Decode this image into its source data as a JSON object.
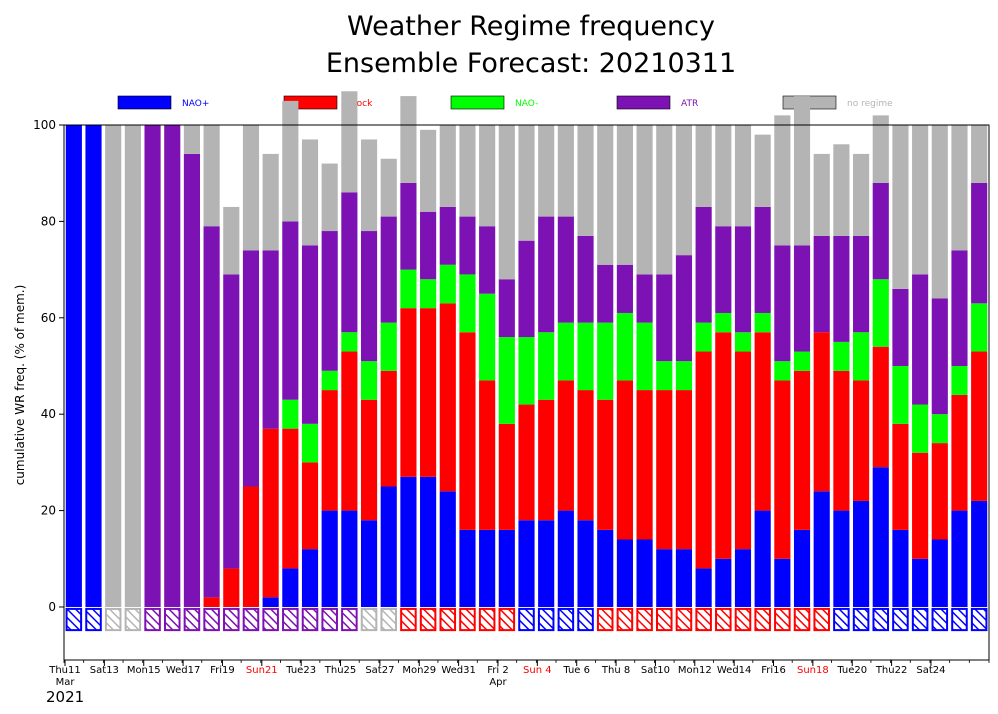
{
  "chart_data": {
    "type": "bar",
    "stacked": true,
    "title": [
      "Weather Regime frequency",
      "Ensemble Forecast: 20210311"
    ],
    "ylabel": "cumulative WR freq. (% of mem.)",
    "ylim": [
      -11,
      100
    ],
    "yticks": [
      0,
      20,
      40,
      60,
      80,
      100
    ],
    "grid": false,
    "legend_position": "top",
    "series": [
      {
        "name": "NAO+",
        "color": "#0000ff",
        "values": [
          100,
          100,
          0,
          0,
          0,
          0,
          0,
          0,
          0,
          0,
          2,
          8,
          12,
          20,
          20,
          18,
          25,
          27,
          27,
          24,
          16,
          16,
          16,
          18,
          18,
          20,
          18,
          16,
          14,
          14,
          12,
          12,
          8,
          10,
          12,
          20,
          10,
          16,
          24,
          20,
          22,
          29,
          16,
          10,
          14,
          20,
          22
        ]
      },
      {
        "name": "Block",
        "color": "#ff0000",
        "values": [
          0,
          0,
          0,
          0,
          0,
          0,
          0,
          2,
          8,
          25,
          35,
          29,
          18,
          25,
          33,
          25,
          24,
          35,
          35,
          39,
          41,
          31,
          22,
          24,
          25,
          27,
          27,
          27,
          33,
          31,
          33,
          33,
          45,
          47,
          41,
          37,
          37,
          33,
          33,
          29,
          25,
          25,
          22,
          22,
          20,
          24,
          31
        ]
      },
      {
        "name": "NAO-",
        "color": "#00ff00",
        "values": [
          0,
          0,
          0,
          0,
          0,
          0,
          0,
          0,
          0,
          0,
          0,
          6,
          8,
          4,
          4,
          8,
          10,
          8,
          6,
          8,
          12,
          18,
          18,
          14,
          14,
          12,
          14,
          16,
          14,
          14,
          6,
          6,
          6,
          4,
          4,
          4,
          4,
          4,
          0,
          6,
          10,
          14,
          12,
          10,
          6,
          6,
          10
        ]
      },
      {
        "name": "ATR",
        "color": "#7d12b4",
        "values": [
          0,
          0,
          0,
          0,
          100,
          100,
          94,
          77,
          61,
          49,
          37,
          37,
          37,
          29,
          29,
          27,
          22,
          18,
          14,
          12,
          12,
          14,
          12,
          20,
          24,
          22,
          18,
          12,
          10,
          10,
          18,
          22,
          24,
          18,
          22,
          22,
          24,
          22,
          20,
          22,
          20,
          20,
          16,
          27,
          24,
          24,
          25
        ]
      },
      {
        "name": "no regime",
        "color": "#b4b4b4",
        "values": [
          0,
          0,
          100,
          100,
          0,
          0,
          6,
          21,
          14,
          26,
          20,
          25,
          22,
          14,
          21,
          19,
          12,
          18,
          17,
          17,
          19,
          21,
          32,
          24,
          19,
          19,
          23,
          29,
          29,
          31,
          31,
          27,
          17,
          21,
          21,
          15,
          27,
          31,
          17,
          19,
          17,
          14,
          34,
          31,
          36,
          26,
          12
        ]
      }
    ],
    "markers": [
      {
        "series": "NAO+",
        "positions": [
          0,
          1,
          23,
          24,
          25,
          26,
          39,
          40,
          41,
          42,
          43,
          44,
          45,
          46
        ]
      },
      {
        "series": "Block",
        "positions": [
          17,
          18,
          19,
          20,
          21,
          22,
          27,
          28,
          29,
          30,
          31,
          32,
          33,
          34,
          35,
          36,
          37,
          38
        ]
      },
      {
        "series": "ATR",
        "positions": [
          4,
          5,
          6,
          7,
          8,
          9,
          10,
          11,
          12,
          13,
          14
        ]
      },
      {
        "series": "no regime",
        "positions": [
          2,
          3,
          15,
          16
        ]
      }
    ],
    "x_tick_labels": [
      {
        "bar": 0,
        "label": "Thu11",
        "color": "#000000"
      },
      {
        "bar": 2,
        "label": "Sat13",
        "color": "#000000"
      },
      {
        "bar": 4,
        "label": "Mon15",
        "color": "#000000"
      },
      {
        "bar": 6,
        "label": "Wed17",
        "color": "#000000"
      },
      {
        "bar": 8,
        "label": "Fri19",
        "color": "#000000"
      },
      {
        "bar": 10,
        "label": "Sun21",
        "color": "#ff0000"
      },
      {
        "bar": 12,
        "label": "Tue23",
        "color": "#000000"
      },
      {
        "bar": 14,
        "label": "Thu25",
        "color": "#000000"
      },
      {
        "bar": 16,
        "label": "Sat27",
        "color": "#000000"
      },
      {
        "bar": 18,
        "label": "Mon29",
        "color": "#000000"
      },
      {
        "bar": 20,
        "label": "Wed31",
        "color": "#000000"
      },
      {
        "bar": 22,
        "label": "Fri 2",
        "color": "#000000"
      },
      {
        "bar": 24,
        "label": "Sun 4",
        "color": "#ff0000"
      },
      {
        "bar": 26,
        "label": "Tue 6",
        "color": "#000000"
      },
      {
        "bar": 28,
        "label": "Thu 8",
        "color": "#000000"
      },
      {
        "bar": 30,
        "label": "Sat10",
        "color": "#000000"
      },
      {
        "bar": 32,
        "label": "Mon12",
        "color": "#000000"
      },
      {
        "bar": 34,
        "label": "Wed14",
        "color": "#000000"
      },
      {
        "bar": 36,
        "label": "Fri16",
        "color": "#000000"
      },
      {
        "bar": 38,
        "label": "Sun18",
        "color": "#ff0000"
      },
      {
        "bar": 40,
        "label": "Tue20",
        "color": "#000000"
      },
      {
        "bar": 42,
        "label": "Thu22",
        "color": "#000000"
      },
      {
        "bar": 44,
        "label": "Sat24",
        "color": "#000000"
      }
    ],
    "month_labels": [
      {
        "bar": 0,
        "label": "Mar"
      },
      {
        "bar": 22,
        "label": "Apr"
      }
    ],
    "year_label": "2021"
  }
}
